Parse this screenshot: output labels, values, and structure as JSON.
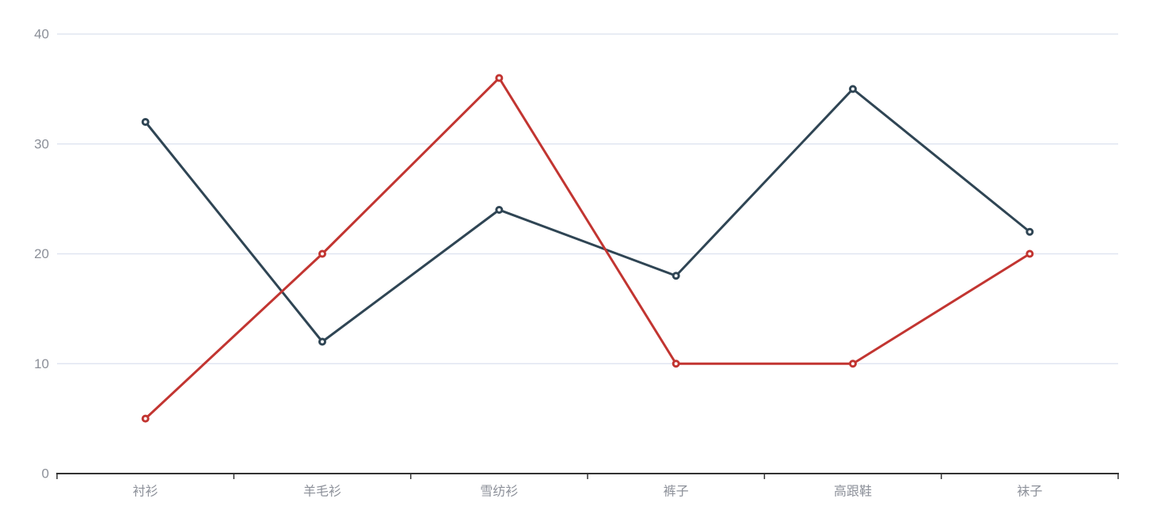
{
  "page": {
    "background_color": "#ffffff"
  },
  "chart_data": {
    "type": "line",
    "categories": [
      "衬衫",
      "羊毛衫",
      "雪纺衫",
      "裤子",
      "高跟鞋",
      "袜子"
    ],
    "series": [
      {
        "id": "series-1",
        "color": "#2f4554",
        "marker": "empty-circle",
        "values": [
          32,
          12,
          24,
          18,
          35,
          22
        ]
      },
      {
        "id": "series-2",
        "color": "#c23531",
        "marker": "empty-circle",
        "values": [
          5,
          20,
          36,
          10,
          10,
          20
        ]
      }
    ],
    "yticks": [
      0,
      10,
      20,
      30,
      40
    ],
    "ylim": [
      0,
      40
    ],
    "grid": true,
    "legend": "none",
    "style": {
      "grid_color": "#e0e6f1",
      "axis_line_color": "#333333",
      "axis_label_color": "#8c9099",
      "line_width": 3,
      "marker_fill": "#ffffff"
    }
  }
}
